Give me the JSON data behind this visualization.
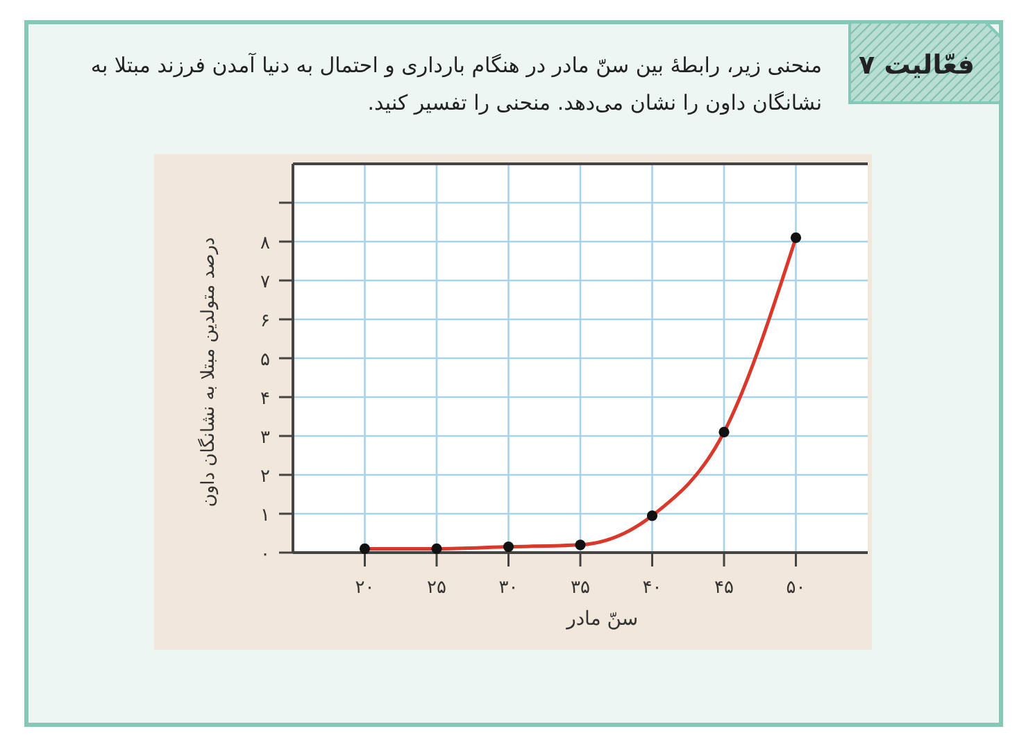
{
  "chart_data": {
    "type": "line",
    "title": "فعّالیت ۷",
    "subtitle": "منحنی زیر، رابطهٔ بین سنّ مادر در هنگام بارداری و احتمال به دنیا آمدن فرزند مبتلا به نشانگان داون را نشان می‌دهد. منحنی را تفسیر کنید.",
    "xlabel": "سنّ مادر",
    "ylabel": "درصد متولدین مبتلا به نشانگان داون",
    "x": [
      20,
      25,
      30,
      35,
      40,
      45,
      50
    ],
    "series": [
      {
        "color": "#d8392b",
        "values": [
          0.1,
          0.1,
          0.15,
          0.2,
          0.95,
          3.1,
          8.1
        ]
      }
    ],
    "xlim": [
      15,
      55
    ],
    "ylim": [
      0,
      10
    ],
    "xticks": [
      {
        "value": 20,
        "label": "۲۰"
      },
      {
        "value": 25,
        "label": "۲۵"
      },
      {
        "value": 30,
        "label": "۳۰"
      },
      {
        "value": 35,
        "label": "۳۵"
      },
      {
        "value": 40,
        "label": "۴۰"
      },
      {
        "value": 45,
        "label": "۴۵"
      },
      {
        "value": 50,
        "label": "۵۰"
      }
    ],
    "yticks": [
      {
        "value": 0,
        "label": "۰"
      },
      {
        "value": 1,
        "label": "۱"
      },
      {
        "value": 2,
        "label": "۲"
      },
      {
        "value": 3,
        "label": "۳"
      },
      {
        "value": 4,
        "label": "۴"
      },
      {
        "value": 5,
        "label": "۵"
      },
      {
        "value": 6,
        "label": "۶"
      },
      {
        "value": 7,
        "label": "۷"
      },
      {
        "value": 8,
        "label": "۸"
      },
      {
        "value": 9,
        "label": null
      }
    ],
    "grid": true,
    "marker": "circle",
    "line_style": "solid"
  }
}
